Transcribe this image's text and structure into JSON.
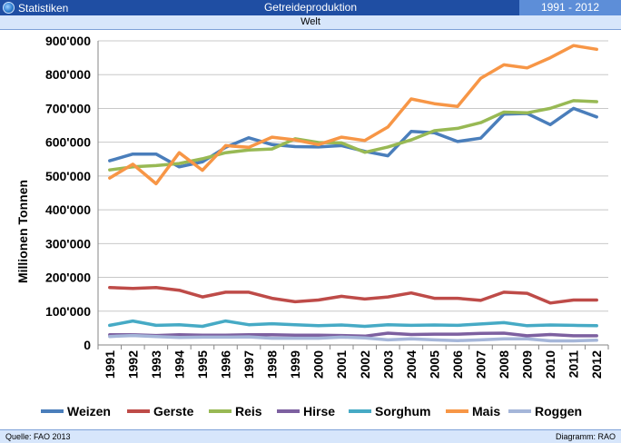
{
  "header": {
    "section": "Statistiken",
    "title": "Getreideproduktion",
    "years": "1991 - 2012"
  },
  "subheader": "Welt",
  "footer": {
    "source": "Quelle: FAO 2013",
    "diagram": "Diagramm: RAO"
  },
  "colors": {
    "header_bg": "#1f4ea3",
    "header_right_bg": "#5d8ed8",
    "subheader_bg": "#d7e6fb"
  },
  "chart_data": {
    "type": "line",
    "title": "",
    "xlabel": "",
    "ylabel": "Millionen Tonnen",
    "ylim": [
      0,
      900000
    ],
    "yticks": [
      "0",
      "100'000",
      "200'000",
      "300'000",
      "400'000",
      "500'000",
      "600'000",
      "700'000",
      "800'000",
      "900'000"
    ],
    "ytick_values": [
      0,
      100000,
      200000,
      300000,
      400000,
      500000,
      600000,
      700000,
      800000,
      900000
    ],
    "grid": true,
    "legend_position": "bottom",
    "categories": [
      "1991",
      "1992",
      "1993",
      "1994",
      "1995",
      "1996",
      "1997",
      "1998",
      "1999",
      "2000",
      "2001",
      "2002",
      "2003",
      "2004",
      "2005",
      "2006",
      "2007",
      "2008",
      "2009",
      "2010",
      "2011",
      "2012"
    ],
    "series": [
      {
        "name": "Weizen",
        "color": "#4a7ebb",
        "values": [
          545000,
          565000,
          565000,
          527000,
          542000,
          585000,
          613000,
          593000,
          587000,
          586000,
          590000,
          573000,
          560000,
          632000,
          628000,
          602000,
          612000,
          683000,
          685000,
          652000,
          700000,
          675000
        ]
      },
      {
        "name": "Gerste",
        "color": "#be4b48",
        "values": [
          170000,
          167000,
          170000,
          162000,
          142000,
          156000,
          156000,
          138000,
          128000,
          133000,
          144000,
          136000,
          142000,
          154000,
          138000,
          138000,
          132000,
          156000,
          153000,
          124000,
          133000,
          133000
        ]
      },
      {
        "name": "Reis",
        "color": "#98b954",
        "values": [
          518000,
          527000,
          531000,
          537000,
          551000,
          569000,
          577000,
          580000,
          610000,
          599000,
          598000,
          570000,
          586000,
          607000,
          634000,
          641000,
          658000,
          689000,
          687000,
          700000,
          723000,
          720000
        ]
      },
      {
        "name": "Hirse",
        "color": "#7d60a0",
        "values": [
          30000,
          30000,
          28000,
          30000,
          29000,
          29000,
          30000,
          30000,
          29000,
          29000,
          28000,
          26000,
          35000,
          31000,
          32000,
          32000,
          34000,
          35000,
          27000,
          31000,
          27000,
          27000
        ]
      },
      {
        "name": "Sorghum",
        "color": "#46aac5",
        "values": [
          58000,
          71000,
          58000,
          60000,
          55000,
          71000,
          60000,
          63000,
          60000,
          57000,
          59000,
          55000,
          60000,
          58000,
          59000,
          58000,
          62000,
          66000,
          57000,
          59000,
          58000,
          57000
        ]
      },
      {
        "name": "Mais",
        "color": "#f79646",
        "values": [
          494000,
          535000,
          477000,
          569000,
          517000,
          590000,
          585000,
          615000,
          607000,
          593000,
          615000,
          605000,
          645000,
          728000,
          714000,
          706000,
          789000,
          829000,
          820000,
          850000,
          886000,
          875000
        ]
      },
      {
        "name": "Roggen",
        "color": "#a5b6d9",
        "values": [
          25000,
          28000,
          25000,
          22000,
          23000,
          23000,
          24000,
          20000,
          20000,
          20000,
          23000,
          21000,
          15000,
          18000,
          15000,
          13000,
          15000,
          18000,
          18000,
          12000,
          12000,
          14000
        ]
      }
    ]
  }
}
